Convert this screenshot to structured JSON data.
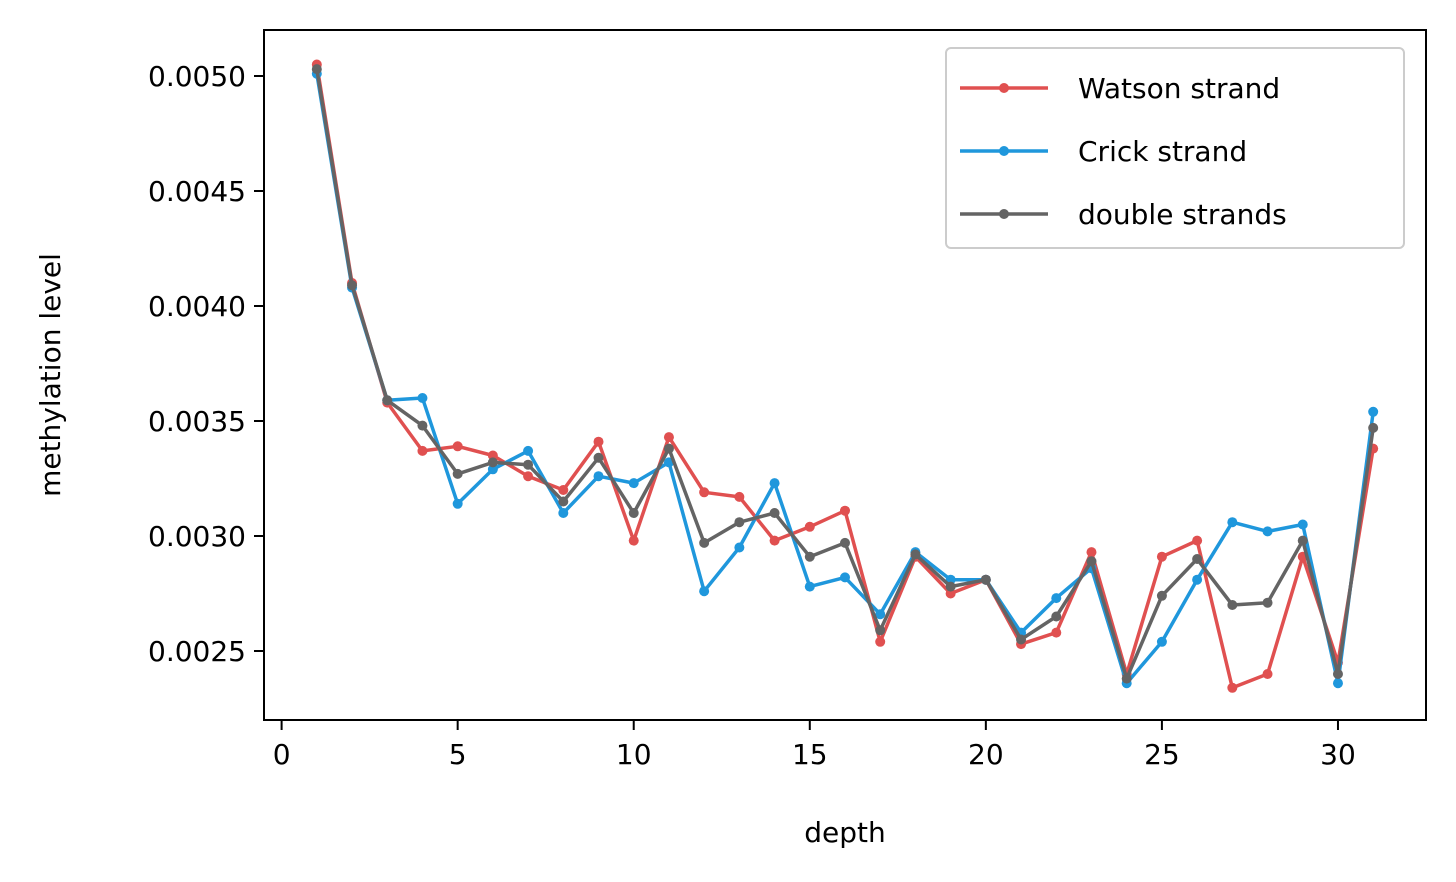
{
  "chart_data": {
    "type": "line",
    "title": "",
    "xlabel": "depth",
    "ylabel": "methylation level",
    "xlim": [
      -0.5,
      32.5
    ],
    "ylim": [
      0.0022,
      0.0052
    ],
    "xticks": [
      0,
      5,
      10,
      15,
      20,
      25,
      30
    ],
    "xtick_labels": [
      "0",
      "5",
      "10",
      "15",
      "20",
      "25",
      "30"
    ],
    "yticks": [
      0.0025,
      0.003,
      0.0035,
      0.004,
      0.0045,
      0.005
    ],
    "ytick_labels": [
      "0.0025",
      "0.0030",
      "0.0035",
      "0.0040",
      "0.0045",
      "0.0050"
    ],
    "grid": false,
    "legend_position": "top-right",
    "x": [
      1,
      2,
      3,
      4,
      5,
      6,
      7,
      8,
      9,
      10,
      11,
      12,
      13,
      14,
      15,
      16,
      17,
      18,
      19,
      20,
      21,
      22,
      23,
      24,
      25,
      26,
      27,
      28,
      29,
      30,
      31
    ],
    "series": [
      {
        "name": "Watson strand",
        "color": "#e05050",
        "values": [
          0.00505,
          0.0041,
          0.00358,
          0.00337,
          0.00339,
          0.00335,
          0.00326,
          0.0032,
          0.00341,
          0.00298,
          0.00343,
          0.00319,
          0.00317,
          0.00298,
          0.00304,
          0.00311,
          0.00254,
          0.00291,
          0.00275,
          0.00281,
          0.00253,
          0.00258,
          0.00293,
          0.0024,
          0.00291,
          0.00298,
          0.00234,
          0.0024,
          0.00291,
          0.00245,
          0.00338
        ]
      },
      {
        "name": "Crick strand",
        "color": "#1f97dc",
        "values": [
          0.00501,
          0.00408,
          0.00359,
          0.0036,
          0.00314,
          0.00329,
          0.00337,
          0.0031,
          0.00326,
          0.00323,
          0.00332,
          0.00276,
          0.00295,
          0.00323,
          0.00278,
          0.00282,
          0.00266,
          0.00293,
          0.00281,
          0.00281,
          0.00258,
          0.00273,
          0.00286,
          0.00236,
          0.00254,
          0.00281,
          0.00306,
          0.00302,
          0.00305,
          0.00236,
          0.00354
        ]
      },
      {
        "name": "double strands",
        "color": "#646464",
        "values": [
          0.00503,
          0.00409,
          0.00359,
          0.00348,
          0.00327,
          0.00332,
          0.00331,
          0.00315,
          0.00334,
          0.0031,
          0.00338,
          0.00297,
          0.00306,
          0.0031,
          0.00291,
          0.00297,
          0.00259,
          0.00292,
          0.00278,
          0.00281,
          0.00255,
          0.00265,
          0.00289,
          0.00238,
          0.00274,
          0.0029,
          0.0027,
          0.00271,
          0.00298,
          0.0024,
          0.00347
        ]
      }
    ]
  }
}
